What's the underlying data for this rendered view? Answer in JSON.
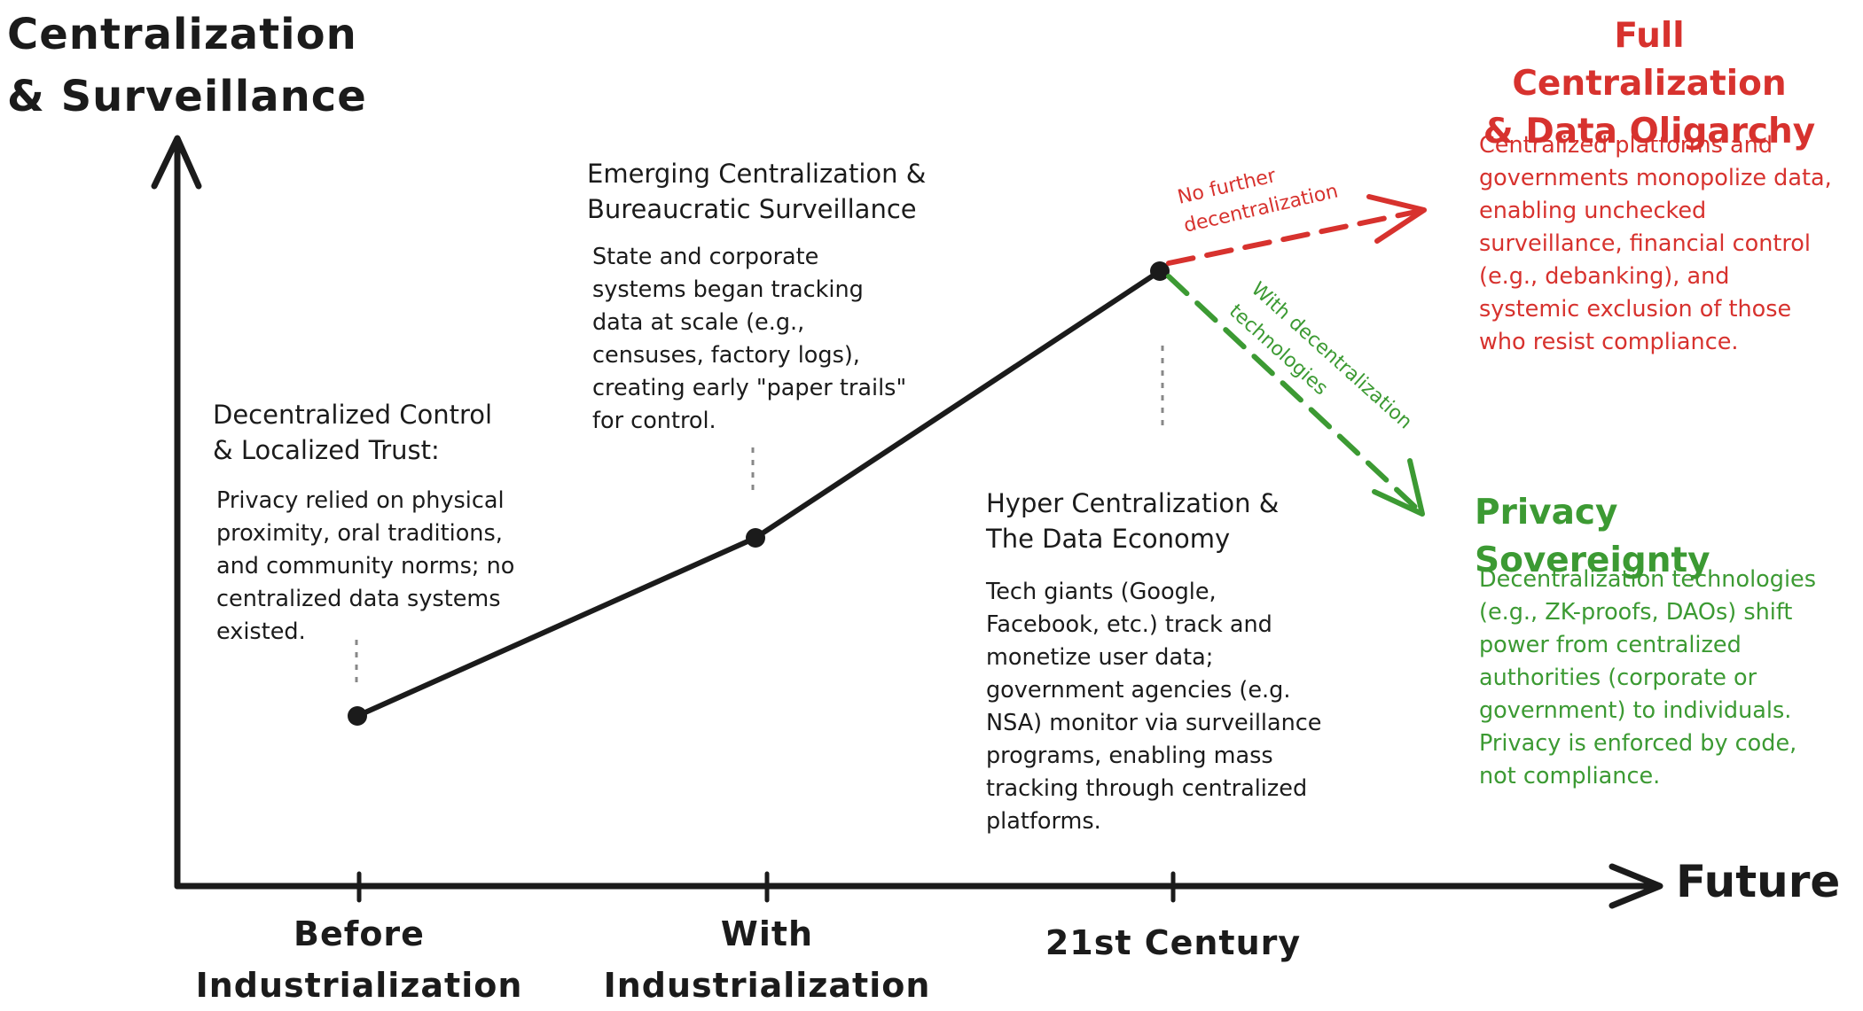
{
  "axes": {
    "y_label": "Centralization\n& Surveillance",
    "x_end_label": "Future",
    "x_ticks": [
      "Before\nIndustrialization",
      "With\nIndustrialization",
      "21st Century"
    ]
  },
  "stages": [
    {
      "title": "Decentralized Control\n& Localized Trust:",
      "description": "Privacy relied on physical\nproximity, oral traditions,\nand community norms; no\ncentralized data systems\nexisted."
    },
    {
      "title": "Emerging Centralization &\nBureaucratic Surveillance",
      "description": "State and corporate\nsystems began tracking\ndata at scale (e.g.,\ncensuses, factory logs),\ncreating early \"paper trails\"\nfor control."
    },
    {
      "title": "Hyper Centralization &\nThe Data Economy",
      "description": "Tech giants (Google,\nFacebook, etc.) track and\nmonetize user data;\ngovernment agencies (e.g.\nNSA) monitor via surveillance\nprograms, enabling mass\ntracking through centralized\nplatforms."
    }
  ],
  "branches": {
    "centralized": {
      "arrow_label_1": "No further",
      "arrow_label_2": "decentralization",
      "title": "Full Centralization\n& Data Oligarchy",
      "description": "Centralized platforms and\ngovernments monopolize data,\nenabling unchecked\nsurveillance, financial control\n(e.g., debanking), and\nsystemic exclusion of those\nwho resist compliance.",
      "color": "#d7322e"
    },
    "decentralized": {
      "arrow_label_1": "With decentralization",
      "arrow_label_2": "technologies",
      "title": "Privacy Sovereignty",
      "description": "Decentralization technologies\n(e.g., ZK-proofs, DAOs) shift\npower from centralized\nauthorities (corporate or\ngovernment) to individuals.\nPrivacy is enforced by code,\nnot compliance.",
      "color": "#3c9a33"
    }
  },
  "colors": {
    "ink": "#1b1b1b",
    "red": "#d7322e",
    "green": "#3c9a33"
  }
}
